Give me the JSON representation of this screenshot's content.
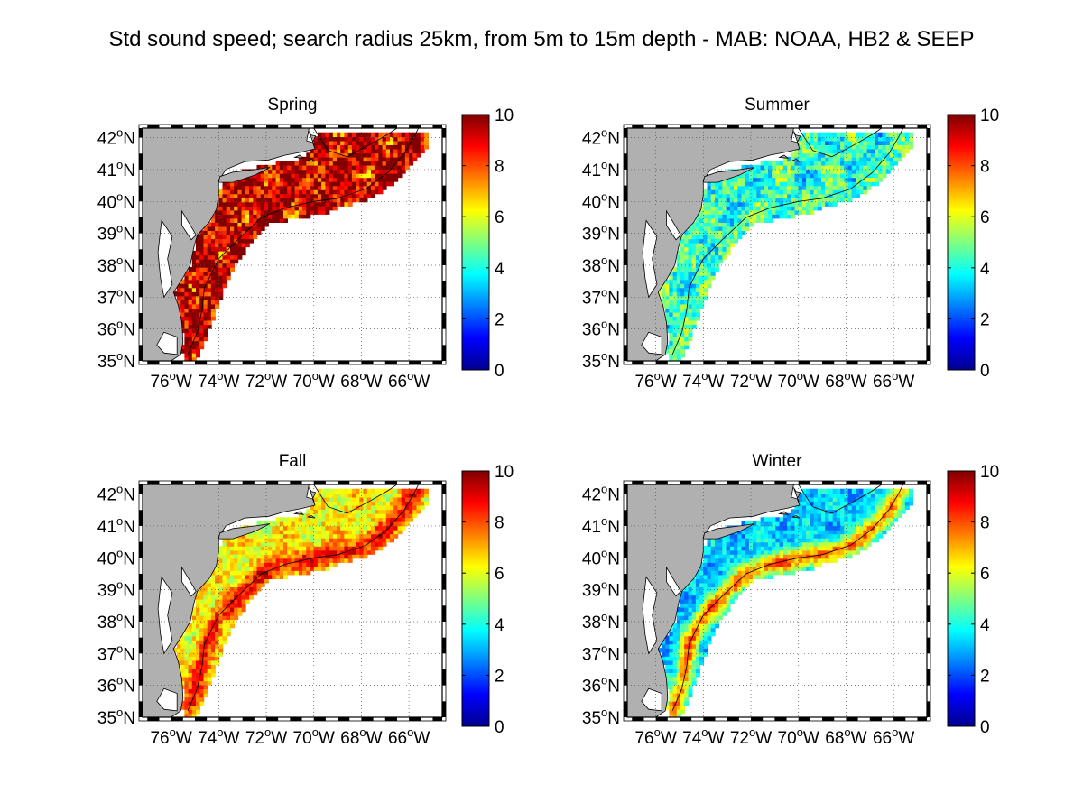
{
  "title": "Std sound speed; search radius 25km, from 5m to 15m depth - MAB: NOAA, HB2 & SEEP",
  "lat_tick_labels": [
    "42",
    "41",
    "40",
    "39",
    "38",
    "37",
    "36",
    "35"
  ],
  "lat_suffix": "N",
  "lon_tick_labels": [
    "76",
    "74",
    "72",
    "70",
    "68",
    "66"
  ],
  "lon_suffix": "W",
  "degree_symbol": "o",
  "colorbar": {
    "colormap": "jet",
    "range": [
      0,
      10
    ],
    "tick_labels": [
      "0",
      "2",
      "4",
      "6",
      "8",
      "10"
    ]
  },
  "colors": {
    "land": "#b0b0b0",
    "water": "#ffffff",
    "coastline": "#000000",
    "grid": "#555555",
    "isobath": "#000000"
  },
  "panels": [
    {
      "id": "spring",
      "label": "Spring",
      "level": 9.2,
      "shelf_edge_level": 9.5,
      "variability": 2.0,
      "seed": 11
    },
    {
      "id": "summer",
      "label": "Summer",
      "level": 4.2,
      "shelf_edge_level": 4.5,
      "variability": 1.4,
      "seed": 23
    },
    {
      "id": "fall",
      "label": "Fall",
      "level": 6.3,
      "shelf_edge_level": 8.6,
      "variability": 1.0,
      "seed": 37
    },
    {
      "id": "winter",
      "label": "Winter",
      "level": 3.3,
      "shelf_edge_level": 7.5,
      "variability": 0.9,
      "seed": 51
    }
  ]
}
